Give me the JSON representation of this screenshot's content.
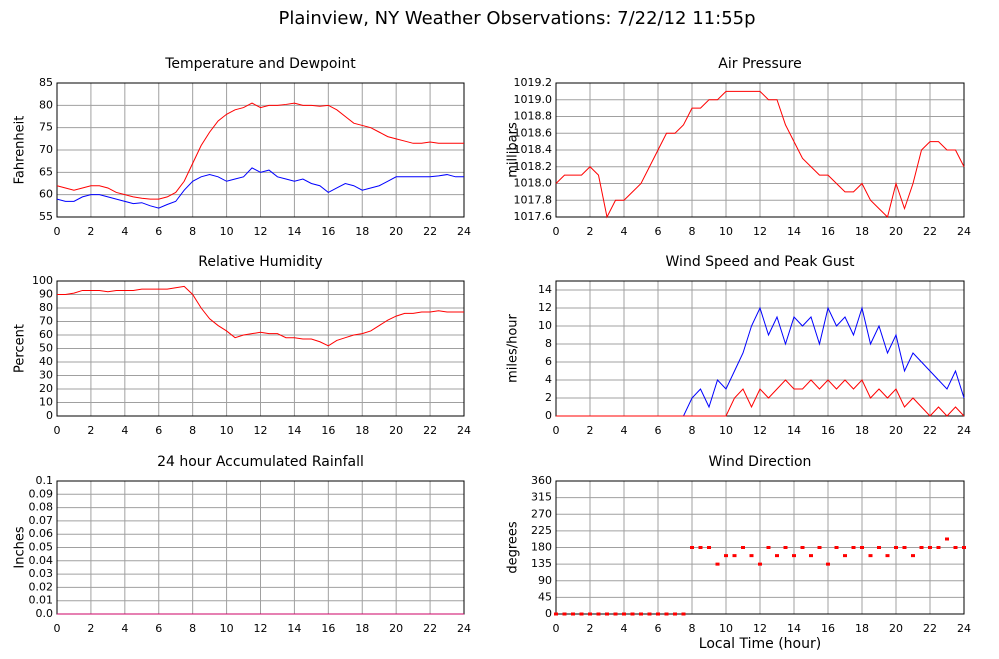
{
  "title": "Plainview, NY Weather Observations: 7/22/12 11:55p",
  "chart_data": [
    {
      "type": "line",
      "title": "Temperature and Dewpoint",
      "ylabel": "Fahrenheit",
      "xlim": [
        0,
        24
      ],
      "xticks": [
        0,
        2,
        4,
        6,
        8,
        10,
        12,
        14,
        16,
        18,
        20,
        22,
        24
      ],
      "ylim": [
        55,
        85
      ],
      "yticks": [
        55,
        60,
        65,
        70,
        75,
        80,
        85
      ],
      "grid": true,
      "x": [
        0,
        0.5,
        1,
        1.5,
        2,
        2.5,
        3,
        3.5,
        4,
        4.5,
        5,
        5.5,
        6,
        6.5,
        7,
        7.5,
        8,
        8.5,
        9,
        9.5,
        10,
        10.5,
        11,
        11.5,
        12,
        12.5,
        13,
        13.5,
        14,
        14.5,
        15,
        15.5,
        16,
        16.5,
        17,
        17.5,
        18,
        18.5,
        19,
        19.5,
        20,
        20.5,
        21,
        21.5,
        22,
        22.5,
        23,
        23.5,
        24
      ],
      "series": [
        {
          "color": "#ff0000",
          "values": [
            62,
            61.5,
            61,
            61.5,
            62,
            62,
            61.5,
            60.5,
            60,
            59.5,
            59.2,
            59,
            59,
            59.5,
            60.5,
            63,
            67,
            71,
            74,
            76.5,
            78,
            79,
            79.5,
            80.5,
            79.5,
            80,
            80,
            80.2,
            80.5,
            80,
            80,
            79.8,
            80,
            79,
            77.5,
            76,
            75.5,
            75,
            74,
            73,
            72.5,
            72,
            71.5,
            71.5,
            71.8,
            71.5,
            71.5,
            71.5,
            71.5
          ]
        },
        {
          "color": "#0000ff",
          "values": [
            59,
            58.5,
            58.5,
            59.5,
            60,
            60,
            59.5,
            59,
            58.5,
            58,
            58.2,
            57.5,
            57,
            57.8,
            58.5,
            61,
            63,
            64,
            64.5,
            64,
            63,
            63.5,
            64,
            66,
            65,
            65.5,
            64,
            63.5,
            63,
            63.5,
            62.5,
            62,
            60.5,
            61.5,
            62.5,
            62,
            61,
            61.5,
            62,
            63,
            64,
            64,
            64,
            64,
            64,
            64.2,
            64.5,
            64,
            64
          ]
        }
      ]
    },
    {
      "type": "line",
      "title": "Air Pressure",
      "ylabel": "millibars",
      "xlim": [
        0,
        24
      ],
      "xticks": [
        0,
        2,
        4,
        6,
        8,
        10,
        12,
        14,
        16,
        18,
        20,
        22,
        24
      ],
      "ylim": [
        1017.6,
        1019.2
      ],
      "yticks": [
        1017.6,
        1017.8,
        {
          "value": 1018,
          "label": "1018.0"
        },
        1018.2,
        1018.4,
        1018.6,
        1018.8,
        {
          "value": 1019,
          "label": "1019.0"
        },
        1019.2
      ],
      "grid": true,
      "x": [
        0,
        0.5,
        1,
        1.5,
        2,
        2.5,
        3,
        3.5,
        4,
        4.5,
        5,
        5.5,
        6,
        6.5,
        7,
        7.5,
        8,
        8.5,
        9,
        9.5,
        10,
        10.5,
        11,
        11.5,
        12,
        12.5,
        13,
        13.5,
        14,
        14.5,
        15,
        15.5,
        16,
        16.5,
        17,
        17.5,
        18,
        18.5,
        19,
        19.5,
        20,
        20.5,
        21,
        21.5,
        22,
        22.5,
        23,
        23.5,
        24
      ],
      "series": [
        {
          "color": "#ff0000",
          "values": [
            1018.0,
            1018.1,
            1018.1,
            1018.1,
            1018.2,
            1018.1,
            1017.6,
            1017.8,
            1017.8,
            1017.9,
            1018.0,
            1018.2,
            1018.4,
            1018.6,
            1018.6,
            1018.7,
            1018.9,
            1018.9,
            1019.0,
            1019.0,
            1019.1,
            1019.1,
            1019.1,
            1019.1,
            1019.1,
            1019.0,
            1019.0,
            1018.7,
            1018.5,
            1018.3,
            1018.2,
            1018.1,
            1018.1,
            1018.0,
            1017.9,
            1017.9,
            1018.0,
            1017.8,
            1017.7,
            1017.6,
            1018.0,
            1017.7,
            1018.0,
            1018.4,
            1018.5,
            1018.5,
            1018.4,
            1018.4,
            1018.2
          ]
        }
      ]
    },
    {
      "type": "line",
      "title": "Relative Humidity",
      "ylabel": "Percent",
      "xlim": [
        0,
        24
      ],
      "xticks": [
        0,
        2,
        4,
        6,
        8,
        10,
        12,
        14,
        16,
        18,
        20,
        22,
        24
      ],
      "ylim": [
        0,
        100
      ],
      "yticks": [
        0,
        10,
        20,
        30,
        40,
        50,
        60,
        70,
        80,
        90,
        100
      ],
      "grid": true,
      "x": [
        0,
        0.5,
        1,
        1.5,
        2,
        2.5,
        3,
        3.5,
        4,
        4.5,
        5,
        5.5,
        6,
        6.5,
        7,
        7.5,
        8,
        8.5,
        9,
        9.5,
        10,
        10.5,
        11,
        11.5,
        12,
        12.5,
        13,
        13.5,
        14,
        14.5,
        15,
        15.5,
        16,
        16.5,
        17,
        17.5,
        18,
        18.5,
        19,
        19.5,
        20,
        20.5,
        21,
        21.5,
        22,
        22.5,
        23,
        23.5,
        24
      ],
      "series": [
        {
          "color": "#ff0000",
          "values": [
            90,
            90,
            91,
            93,
            93,
            93,
            92,
            93,
            93,
            93,
            94,
            94,
            94,
            94,
            95,
            96,
            90,
            80,
            72,
            67,
            63,
            58,
            60,
            61,
            62,
            61,
            61,
            58,
            58,
            57,
            57,
            55,
            52,
            56,
            58,
            60,
            61,
            63,
            67,
            71,
            74,
            76,
            76,
            77,
            77,
            78,
            77,
            77,
            77
          ]
        }
      ]
    },
    {
      "type": "line",
      "title": "Wind Speed and Peak Gust",
      "ylabel": "miles/hour",
      "xlim": [
        0,
        24
      ],
      "xticks": [
        0,
        2,
        4,
        6,
        8,
        10,
        12,
        14,
        16,
        18,
        20,
        22,
        24
      ],
      "ylim": [
        0,
        15
      ],
      "yticks": [
        0,
        2,
        4,
        6,
        8,
        10,
        12,
        14
      ],
      "grid": true,
      "x": [
        0,
        0.5,
        1,
        1.5,
        2,
        2.5,
        3,
        3.5,
        4,
        4.5,
        5,
        5.5,
        6,
        6.5,
        7,
        7.5,
        8,
        8.5,
        9,
        9.5,
        10,
        10.5,
        11,
        11.5,
        12,
        12.5,
        13,
        13.5,
        14,
        14.5,
        15,
        15.5,
        16,
        16.5,
        17,
        17.5,
        18,
        18.5,
        19,
        19.5,
        20,
        20.5,
        21,
        21.5,
        22,
        22.5,
        23,
        23.5,
        24
      ],
      "series": [
        {
          "color": "#0000ff",
          "values": [
            0,
            0,
            0,
            0,
            0,
            0,
            0,
            0,
            0,
            0,
            0,
            0,
            0,
            0,
            0,
            0,
            2,
            3,
            1,
            4,
            3,
            5,
            7,
            10,
            12,
            9,
            11,
            8,
            11,
            10,
            11,
            8,
            12,
            10,
            11,
            9,
            12,
            8,
            10,
            7,
            9,
            5,
            7,
            6,
            5,
            4,
            3,
            5,
            2
          ]
        },
        {
          "color": "#ff0000",
          "values": [
            0,
            0,
            0,
            0,
            0,
            0,
            0,
            0,
            0,
            0,
            0,
            0,
            0,
            0,
            0,
            0,
            0,
            0,
            0,
            0,
            0,
            2,
            3,
            1,
            3,
            2,
            3,
            4,
            3,
            3,
            4,
            3,
            4,
            3,
            4,
            3,
            4,
            2,
            3,
            2,
            3,
            1,
            2,
            1,
            0,
            1,
            0,
            1,
            0
          ]
        }
      ]
    },
    {
      "type": "line",
      "title": "24 hour Accumulated Rainfall",
      "ylabel": "Inches",
      "xlim": [
        0,
        24
      ],
      "xticks": [
        0,
        2,
        4,
        6,
        8,
        10,
        12,
        14,
        16,
        18,
        20,
        22,
        24
      ],
      "ylim": [
        0,
        0.1
      ],
      "yticks": [
        {
          "value": 0,
          "label": "0.0"
        },
        0.01,
        0.02,
        0.03,
        0.04,
        0.05,
        0.06,
        0.07,
        0.08,
        0.09,
        0.1
      ],
      "grid": true,
      "x": [
        0,
        24
      ],
      "series": [
        {
          "color": "#cc0066",
          "values": [
            0,
            0
          ]
        }
      ]
    },
    {
      "type": "scatter",
      "title": "Wind Direction",
      "ylabel": "degrees",
      "xlabel": "Local Time (hour)",
      "xlim": [
        0,
        24
      ],
      "xticks": [
        0,
        2,
        4,
        6,
        8,
        10,
        12,
        14,
        16,
        18,
        20,
        22,
        24
      ],
      "ylim": [
        0,
        360
      ],
      "yticks": [
        0,
        45,
        90,
        135,
        180,
        225,
        270,
        315,
        360
      ],
      "grid": true,
      "x": [
        0,
        0.5,
        1,
        1.5,
        2,
        2.5,
        3,
        3.5,
        4,
        4.5,
        5,
        5.5,
        6,
        6.5,
        7,
        7.5,
        8,
        8.5,
        9,
        9.5,
        10,
        10.5,
        11,
        11.5,
        12,
        12.5,
        13,
        13.5,
        14,
        14.5,
        15,
        15.5,
        16,
        16.5,
        17,
        17.5,
        18,
        18.5,
        19,
        19.5,
        20,
        20.5,
        21,
        21.5,
        22,
        22.5,
        23,
        23.5,
        24
      ],
      "series": [
        {
          "color": "#ff0000",
          "values": [
            0,
            0,
            0,
            0,
            0,
            0,
            0,
            0,
            0,
            0,
            0,
            0,
            0,
            0,
            0,
            0,
            180,
            180,
            180,
            135,
            158,
            158,
            180,
            158,
            135,
            180,
            158,
            180,
            158,
            180,
            158,
            180,
            135,
            180,
            158,
            180,
            180,
            158,
            180,
            158,
            180,
            180,
            158,
            180,
            180,
            180,
            203,
            180,
            180
          ]
        }
      ]
    }
  ]
}
